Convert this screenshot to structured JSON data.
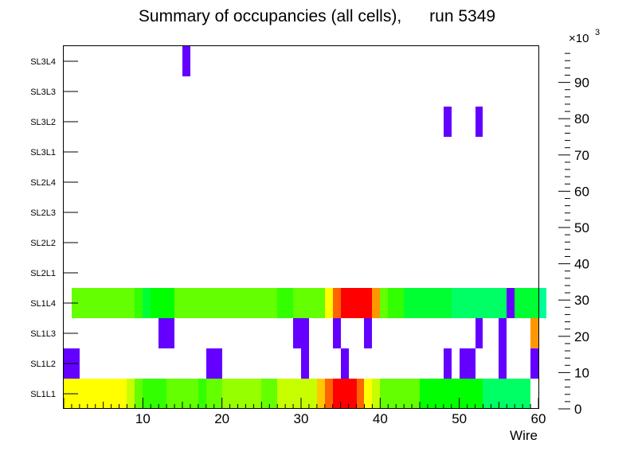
{
  "chart_data": {
    "type": "heatmap",
    "title": "Summary of occupancies (all cells),      run 5349",
    "xlabel": "Wire",
    "ylabel": "",
    "xlim": [
      0,
      60
    ],
    "x_ticks": [
      10,
      20,
      30,
      40,
      50,
      60
    ],
    "y_categories": [
      "SL1L1",
      "SL1L2",
      "SL1L3",
      "SL1L4",
      "SL2L1",
      "SL2L2",
      "SL2L3",
      "SL2L4",
      "SL3L1",
      "SL3L2",
      "SL3L3",
      "SL3L4"
    ],
    "colorbar": {
      "min": 0,
      "max": 100000,
      "exponent_label": "×10",
      "exponent_power": "3",
      "tick_values": [
        0,
        10,
        20,
        30,
        40,
        50,
        60,
        70,
        80,
        90
      ],
      "tick_labels": [
        "0",
        "10",
        "20",
        "30",
        "40",
        "50",
        "60",
        "70",
        "80",
        "90"
      ],
      "palette": [
        "#6400ff",
        "#3200ff",
        "#0000ff",
        "#0032ff",
        "#0064ff",
        "#0096ff",
        "#00c8ff",
        "#00ffff",
        "#00ffc8",
        "#00ff96",
        "#00ff64",
        "#00ff32",
        "#00ff00",
        "#32ff00",
        "#64ff00",
        "#96ff00",
        "#c8ff00",
        "#ffff00",
        "#ffc800",
        "#ff9600",
        "#ff6400",
        "#ff3200",
        "#ff0000"
      ]
    },
    "rows": [
      {
        "layer": "SL1L1",
        "x_start": 0,
        "values": [
          75,
          75,
          75,
          75,
          75,
          75,
          75,
          75,
          70,
          63,
          58,
          58,
          58,
          61,
          61,
          63,
          63,
          58,
          61,
          61,
          66,
          66,
          66,
          66,
          66,
          63,
          63,
          70,
          70,
          70,
          70,
          70,
          82,
          89,
          98,
          98,
          98,
          89,
          77,
          70,
          61,
          61,
          61,
          61,
          61,
          54,
          54,
          54,
          54,
          54,
          54,
          54,
          54,
          47,
          47,
          47,
          47,
          47,
          47,
          0
        ]
      },
      {
        "layer": "SL1L2",
        "x_start": 0,
        "values": [
          3,
          3,
          0,
          0,
          0,
          0,
          0,
          0,
          0,
          0,
          0,
          0,
          0,
          0,
          0,
          0,
          0,
          0,
          3,
          3,
          0,
          0,
          0,
          0,
          0,
          0,
          0,
          0,
          0,
          0,
          3,
          0,
          0,
          0,
          0,
          3,
          0,
          0,
          0,
          0,
          0,
          0,
          0,
          0,
          0,
          0,
          0,
          0,
          3,
          0,
          3,
          3,
          0,
          0,
          0,
          3,
          0,
          0,
          0,
          3
        ]
      },
      {
        "layer": "SL1L3",
        "x_start": 0,
        "values": [
          0,
          0,
          0,
          0,
          0,
          0,
          0,
          0,
          0,
          0,
          0,
          0,
          3,
          3,
          0,
          0,
          0,
          0,
          0,
          0,
          0,
          0,
          0,
          0,
          0,
          0,
          0,
          0,
          0,
          3,
          3,
          0,
          0,
          0,
          3,
          0,
          0,
          0,
          3,
          0,
          0,
          0,
          0,
          0,
          0,
          0,
          0,
          0,
          0,
          0,
          0,
          0,
          3,
          0,
          0,
          3,
          0,
          0,
          0,
          86
        ]
      },
      {
        "layer": "SL1L4",
        "x_start": 1,
        "values": [
          61,
          61,
          61,
          65,
          65,
          65,
          61,
          61,
          58,
          52,
          55,
          55,
          55,
          61,
          61,
          61,
          61,
          61,
          61,
          61,
          61,
          61,
          61,
          61,
          61,
          61,
          58,
          58,
          61,
          61,
          61,
          61,
          75,
          91,
          98,
          98,
          98,
          98,
          86,
          61,
          58,
          58,
          49,
          49,
          49,
          49,
          49,
          49,
          45,
          45,
          45,
          45,
          45,
          45,
          45,
          3,
          49,
          49,
          49,
          42
        ]
      },
      {
        "layer": "SL2L1",
        "x_start": 0,
        "values": []
      },
      {
        "layer": "SL2L2",
        "x_start": 0,
        "values": []
      },
      {
        "layer": "SL2L3",
        "x_start": 0,
        "values": []
      },
      {
        "layer": "SL2L4",
        "x_start": 0,
        "values": []
      },
      {
        "layer": "SL3L1",
        "x_start": 0,
        "values": []
      },
      {
        "layer": "SL3L2",
        "x_start": 48,
        "values": [
          3,
          0,
          0,
          0,
          3
        ]
      },
      {
        "layer": "SL3L3",
        "x_start": 0,
        "values": []
      },
      {
        "layer": "SL3L4",
        "x_start": 15,
        "values": [
          3
        ]
      }
    ]
  }
}
